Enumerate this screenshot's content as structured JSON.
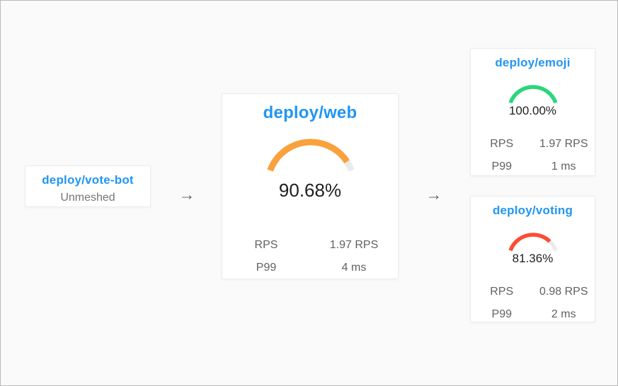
{
  "page": {
    "background": "#fafafa",
    "border_color": "#b9b9b9"
  },
  "colors": {
    "node_link_blue": "#2196f3",
    "text_primary": "#1f1f1f",
    "text_secondary": "#616161",
    "status_muted": "#757575",
    "arrow_gray": "#5f5f5f"
  },
  "gauge_track_color": "#ebebeb",
  "arrow": {
    "glyph": "→"
  },
  "chart_data": {
    "type": "gauge-topology",
    "nodes": [
      {
        "name": "deploy/vote-bot",
        "status": "Unmeshed"
      },
      {
        "name": "deploy/web",
        "success_rate_pct": 90.68,
        "rps": 1.97,
        "p99_ms": 4
      },
      {
        "name": "deploy/emoji",
        "success_rate_pct": 100.0,
        "rps": 1.97,
        "p99_ms": 1
      },
      {
        "name": "deploy/voting",
        "success_rate_pct": 81.36,
        "rps": 0.98,
        "p99_ms": 2
      }
    ],
    "edges": [
      [
        "deploy/vote-bot",
        "deploy/web"
      ],
      [
        "deploy/web",
        "deploy/emoji"
      ],
      [
        "deploy/web",
        "deploy/voting"
      ]
    ]
  },
  "nodes": {
    "votebot": {
      "title": "deploy/vote-bot",
      "status": "Unmeshed"
    },
    "web": {
      "title": "deploy/web",
      "success_rate_label": "90.68%",
      "success_rate_pct": 90.68,
      "gauge_color": "#f9a13c",
      "metrics": [
        {
          "label": "RPS",
          "value": "1.97 RPS"
        },
        {
          "label": "P99",
          "value": "4 ms"
        }
      ]
    },
    "emoji": {
      "title": "deploy/emoji",
      "success_rate_label": "100.00%",
      "success_rate_pct": 100,
      "gauge_color": "#2bd67b",
      "metrics": [
        {
          "label": "RPS",
          "value": "1.97 RPS"
        },
        {
          "label": "P99",
          "value": "1 ms"
        }
      ]
    },
    "voting": {
      "title": "deploy/voting",
      "success_rate_label": "81.36%",
      "success_rate_pct": 81.36,
      "gauge_color": "#fc4c33",
      "metrics": [
        {
          "label": "RPS",
          "value": "0.98 RPS"
        },
        {
          "label": "P99",
          "value": "2 ms"
        }
      ]
    }
  }
}
